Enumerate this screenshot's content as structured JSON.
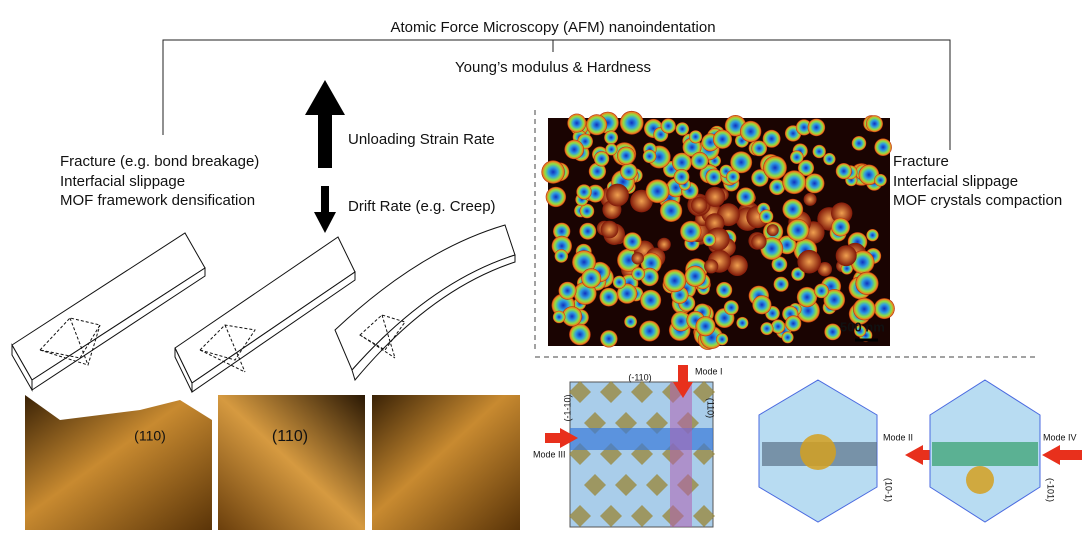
{
  "header": {
    "title": "Atomic Force Microscopy (AFM) nanoindentation",
    "subtitle": "Young’s modulus & Hardness"
  },
  "left_effects": [
    "Fracture (e.g. bond breakage)",
    "Interfacial slippage",
    "MOF framework densification"
  ],
  "rate_arrows": {
    "up": "Unloading Strain Rate",
    "down": "Drift Rate (e.g. Creep)"
  },
  "right_effects": [
    "Fracture",
    "Interfacial slippage",
    "MOF crystals compaction"
  ],
  "afm_map": {
    "scale_bar": "500 nm"
  },
  "afm_image_labels": [
    "(110)",
    "(110)"
  ],
  "crystal_views": {
    "square": {
      "facets": [
        "(-110)",
        "(-1-10)",
        "(110)"
      ],
      "modes": [
        "Mode I",
        "Mode III"
      ]
    },
    "hex_left": {
      "facet": "(10-1)",
      "mode": "Mode II"
    },
    "hex_right": {
      "facet": "(-101)",
      "mode": "Mode IV"
    }
  }
}
